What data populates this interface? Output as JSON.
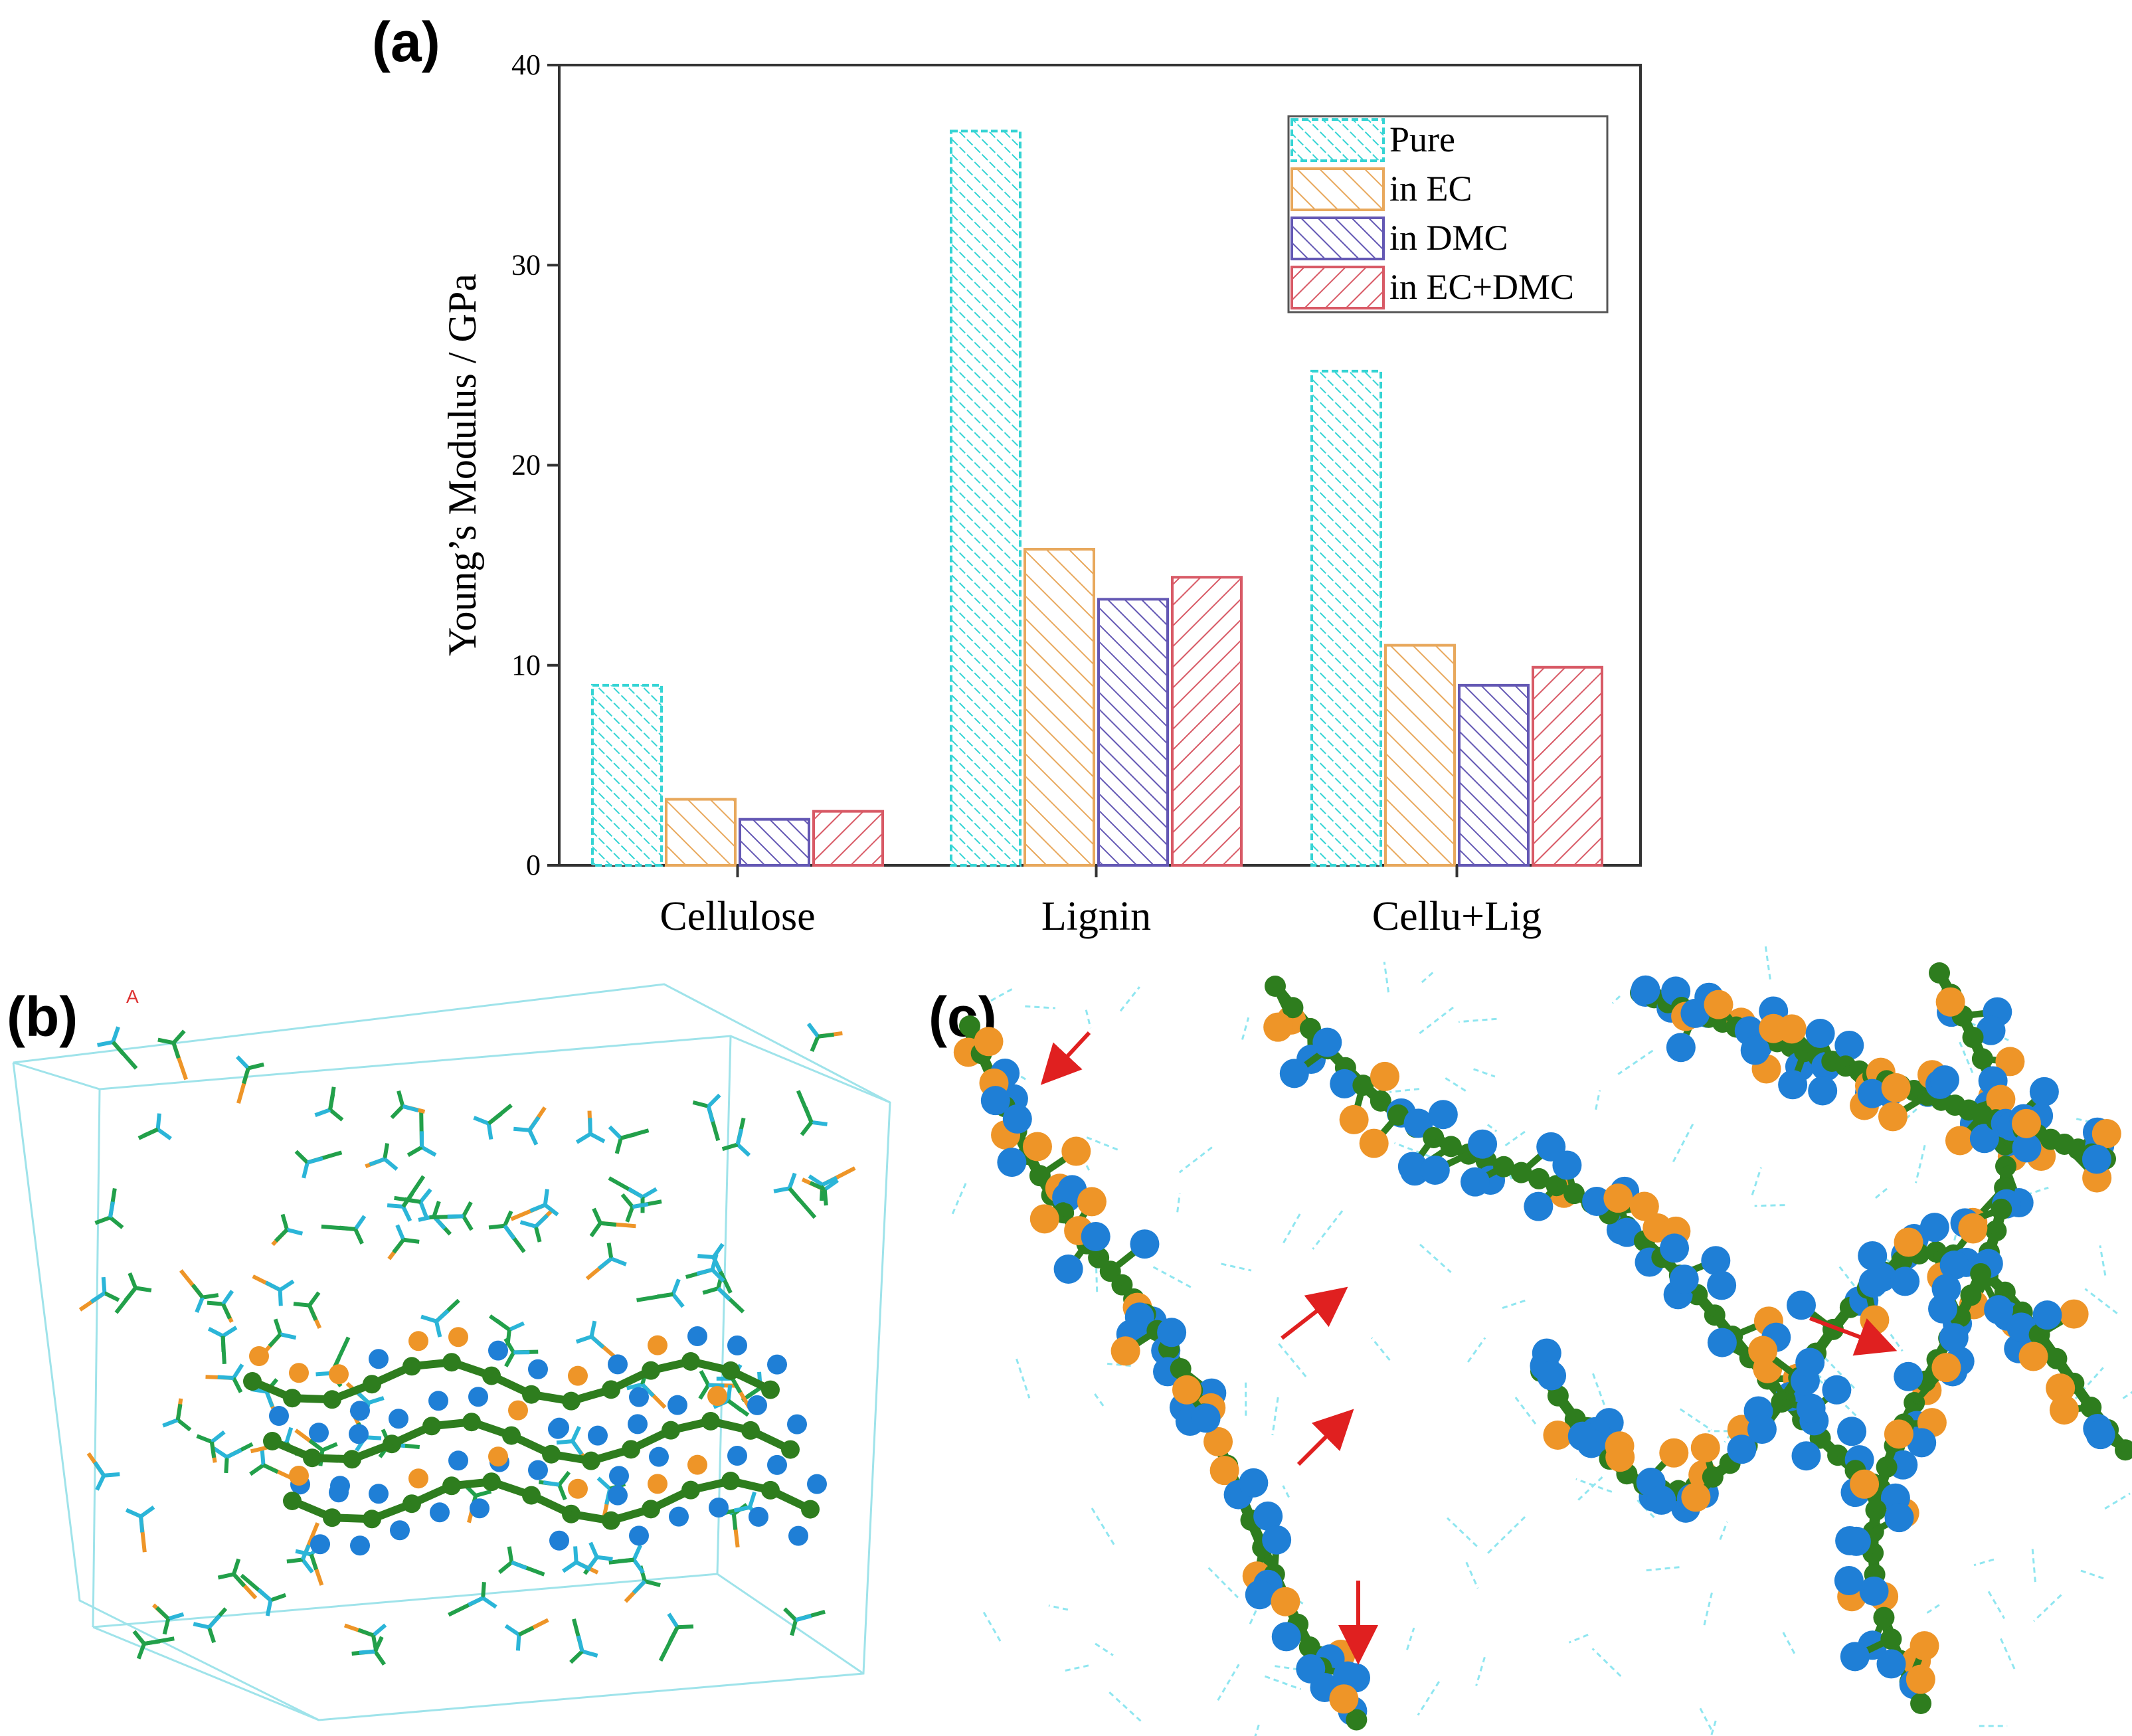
{
  "panels": {
    "a": "(a)",
    "b": "(b)",
    "c": "(c)"
  },
  "chart_data": {
    "type": "bar",
    "title": "",
    "xlabel": "",
    "ylabel": "Young’s Modulus / GPa",
    "ylim": [
      0,
      40
    ],
    "yticks": [
      0,
      10,
      20,
      30,
      40
    ],
    "categories": [
      "Cellulose",
      "Lignin",
      "Cellu+Lig"
    ],
    "series": [
      {
        "name": "Pure",
        "values": [
          9.0,
          36.7,
          24.7
        ],
        "color": "#35d4d4"
      },
      {
        "name": "in EC",
        "values": [
          3.3,
          15.8,
          11.0
        ],
        "color": "#e8a85c"
      },
      {
        "name": "in DMC",
        "values": [
          2.3,
          13.3,
          9.0
        ],
        "color": "#6458b4"
      },
      {
        "name": "in EC+DMC",
        "values": [
          2.7,
          14.4,
          9.9
        ],
        "color": "#d85a66"
      }
    ],
    "legend": "top-right",
    "grid": false
  },
  "molecule_colors": {
    "carbon": "#2e7d1e",
    "oxygen": "#ee9528",
    "hydrogen": "#1f7fd6",
    "solvent_stick": "#22a04a",
    "solvent_h": "#2bb5d8",
    "box": "#9fe3ea",
    "arrow": "#e02020",
    "hbond": "#8fe6f0"
  }
}
